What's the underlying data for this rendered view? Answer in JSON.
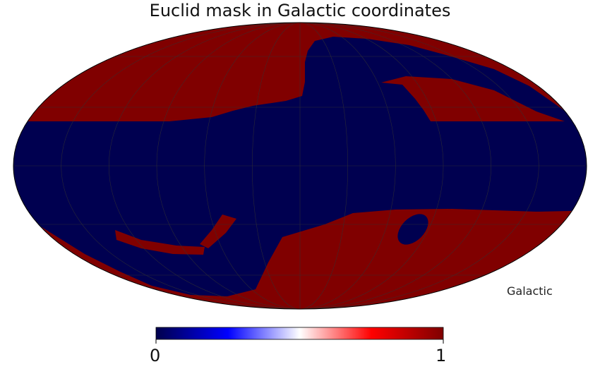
{
  "title": "Euclid mask in Galactic coordinates",
  "coord_label": "Galactic",
  "projection": "mollweide",
  "colorbar": {
    "min_label": "0",
    "max_label": "1",
    "colormap": "seismic",
    "stops": [
      "#00004c",
      "#0000ff",
      "#ffffff",
      "#ff0000",
      "#7f0000"
    ]
  },
  "colors": {
    "masked": "#000050",
    "unmasked": "#800000",
    "graticule": "#333333"
  },
  "graticule": {
    "longitude_step_deg": 30,
    "latitude_step_deg": 30
  }
}
